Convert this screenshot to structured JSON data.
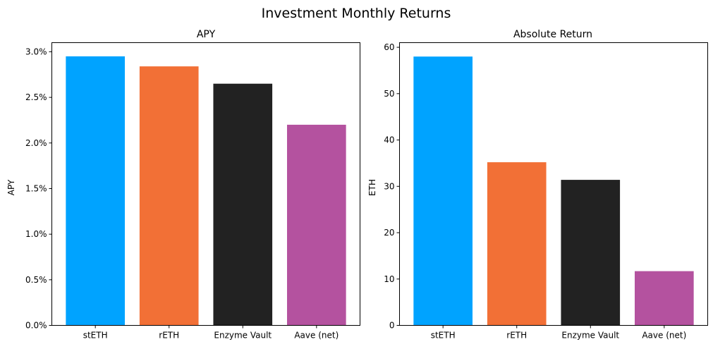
{
  "title": "Investment Monthly Returns",
  "chart_data": [
    {
      "type": "bar",
      "title": "APY",
      "xlabel": "",
      "ylabel": "APY",
      "categories": [
        "stETH",
        "rETH",
        "Enzyme Vault",
        "Aave (net)"
      ],
      "values": [
        2.95,
        2.84,
        2.65,
        2.2
      ],
      "colors": [
        "#00a3ff",
        "#f27036",
        "#222222",
        "#b4529f"
      ],
      "ylim": [
        0,
        3.1
      ],
      "yticks": [
        0.0,
        0.5,
        1.0,
        1.5,
        2.0,
        2.5,
        3.0
      ],
      "ytick_labels": [
        "0.0%",
        "0.5%",
        "1.0%",
        "1.5%",
        "2.0%",
        "2.5%",
        "3.0%"
      ],
      "grid": false
    },
    {
      "type": "bar",
      "title": "Absolute Return",
      "xlabel": "",
      "ylabel": "ETH",
      "categories": [
        "stETH",
        "rETH",
        "Enzyme Vault",
        "Aave (net)"
      ],
      "values": [
        58.0,
        35.2,
        31.4,
        11.7
      ],
      "colors": [
        "#00a3ff",
        "#f27036",
        "#222222",
        "#b4529f"
      ],
      "ylim": [
        0,
        61
      ],
      "yticks": [
        0,
        10,
        20,
        30,
        40,
        50,
        60
      ],
      "ytick_labels": [
        "0",
        "10",
        "20",
        "30",
        "40",
        "50",
        "60"
      ],
      "grid": false
    }
  ]
}
